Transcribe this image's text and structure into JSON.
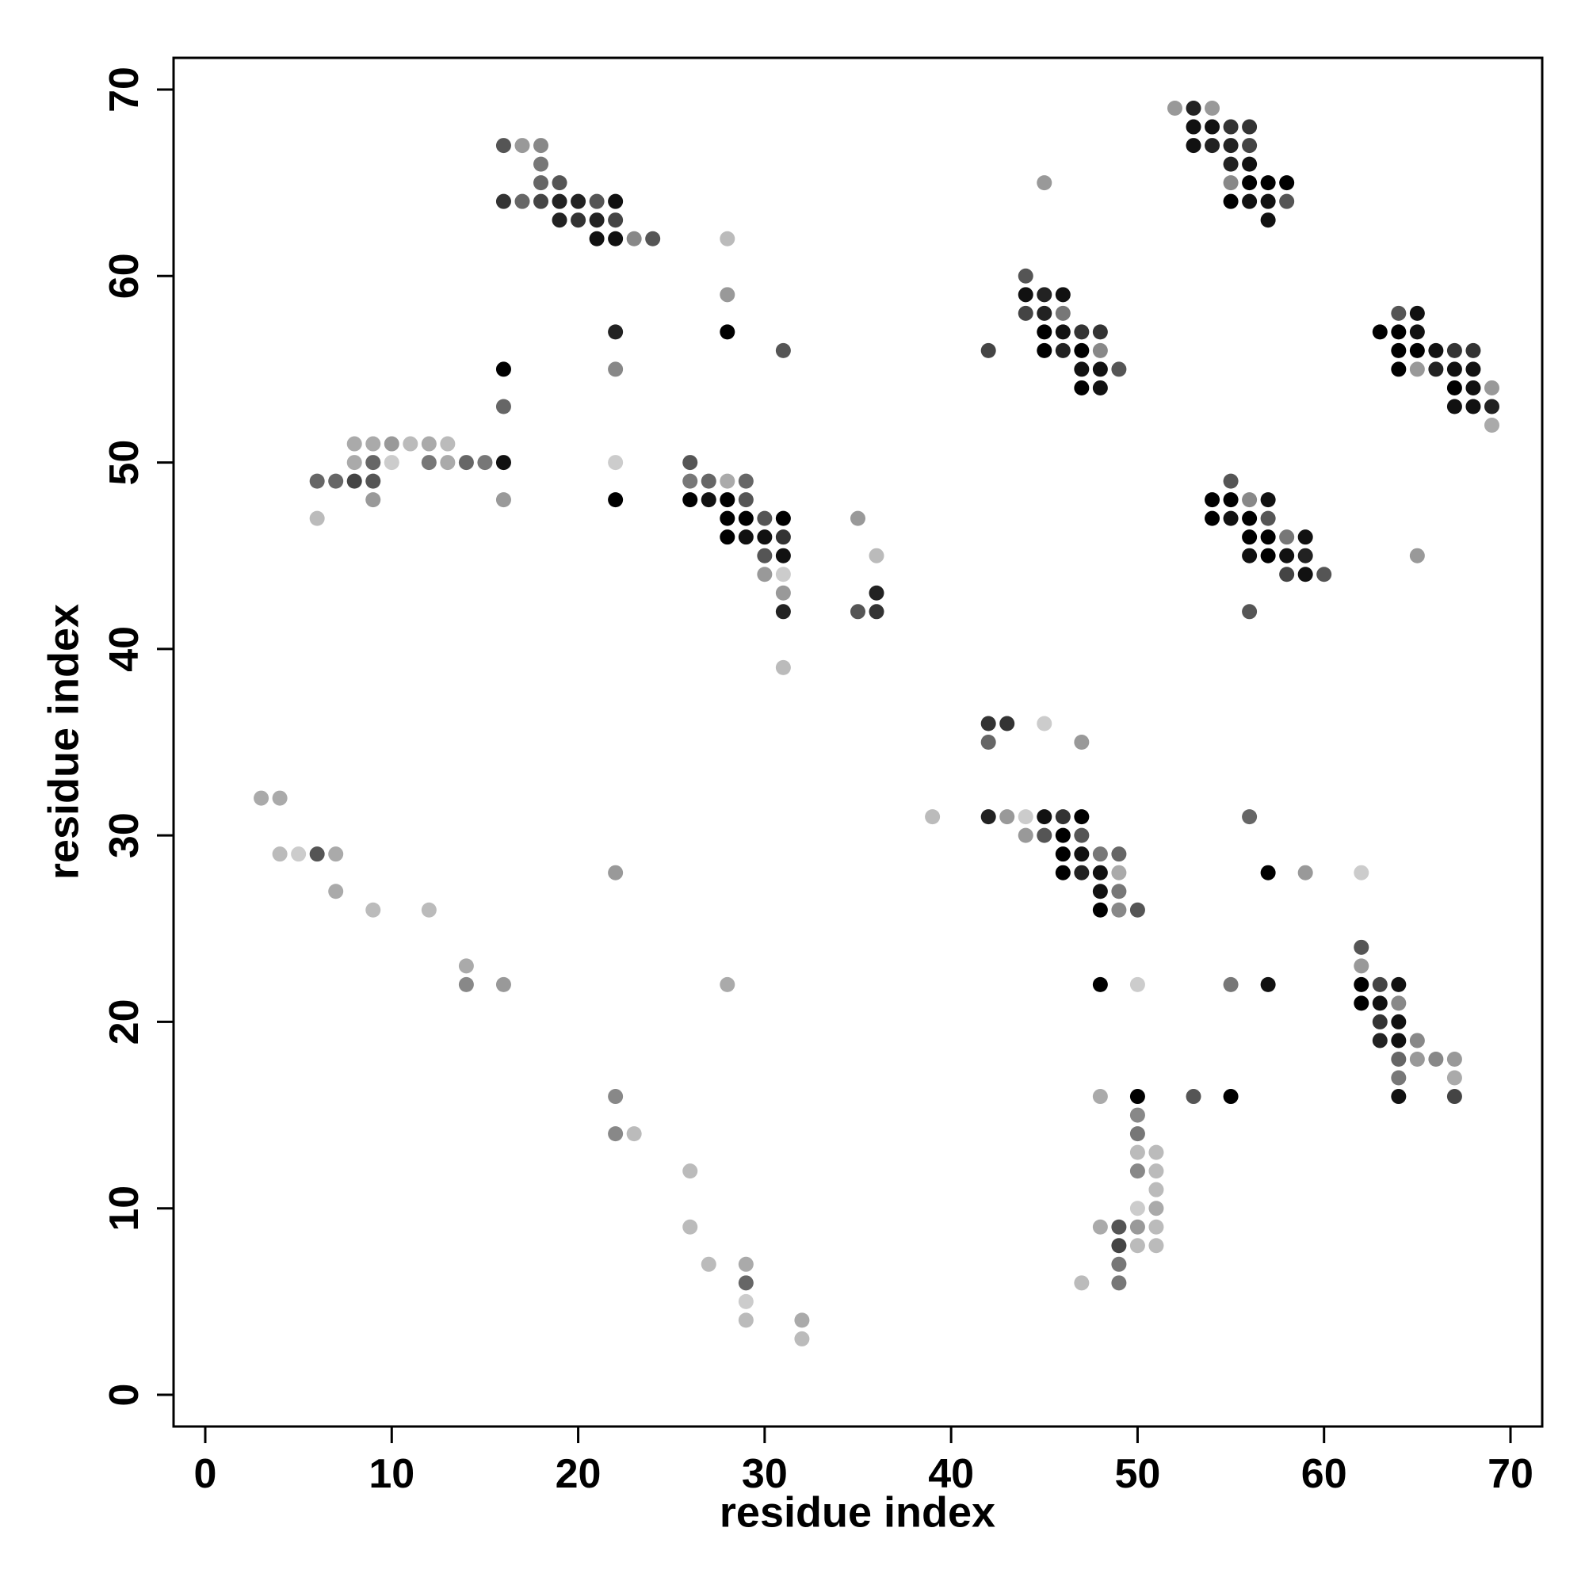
{
  "chart_data": {
    "type": "scatter",
    "xlabel": "residue index",
    "ylabel": "residue index",
    "xlim": [
      -1.7,
      71.7
    ],
    "ylim": [
      -1.7,
      71.7
    ],
    "xticks": [
      0,
      10,
      20,
      30,
      40,
      50,
      60,
      70
    ],
    "yticks": [
      0,
      10,
      20,
      30,
      40,
      50,
      60,
      70
    ],
    "x": [
      52,
      53,
      54,
      53,
      54,
      55,
      56,
      16,
      17,
      18,
      53,
      54,
      55,
      56,
      18,
      55,
      56,
      18,
      19,
      45,
      55,
      56,
      57,
      58,
      16,
      17,
      18,
      19,
      20,
      21,
      22,
      55,
      56,
      57,
      58,
      19,
      20,
      21,
      22,
      57,
      21,
      22,
      23,
      24,
      28,
      44,
      28,
      44,
      45,
      46,
      44,
      45,
      46,
      64,
      65,
      22,
      28,
      45,
      46,
      47,
      48,
      63,
      64,
      65,
      31,
      42,
      45,
      46,
      47,
      48,
      64,
      65,
      66,
      67,
      68,
      16,
      22,
      47,
      48,
      49,
      64,
      65,
      66,
      67,
      68,
      47,
      48,
      67,
      68,
      69,
      16,
      67,
      68,
      69,
      69,
      8,
      9,
      10,
      11,
      12,
      13,
      8,
      9,
      10,
      12,
      13,
      14,
      15,
      16,
      22,
      26,
      6,
      7,
      8,
      9,
      26,
      27,
      28,
      29,
      55,
      9,
      16,
      22,
      26,
      27,
      28,
      29,
      54,
      55,
      56,
      57,
      6,
      28,
      29,
      30,
      31,
      35,
      54,
      55,
      56,
      57,
      28,
      29,
      30,
      31,
      56,
      57,
      58,
      59,
      30,
      31,
      36,
      56,
      57,
      58,
      59,
      65,
      30,
      31,
      58,
      59,
      60,
      31,
      36,
      31,
      35,
      36,
      56,
      31,
      42,
      43,
      45,
      42,
      47,
      3,
      4,
      39,
      42,
      43,
      44,
      45,
      46,
      47,
      56,
      44,
      45,
      46,
      47,
      4,
      5,
      6,
      7,
      46,
      47,
      48,
      49,
      22,
      46,
      47,
      48,
      49,
      57,
      59,
      62,
      7,
      48,
      49,
      9,
      12,
      48,
      49,
      50,
      62,
      14,
      62,
      14,
      16,
      28,
      48,
      50,
      55,
      57,
      62,
      63,
      64,
      62,
      63,
      64,
      63,
      64,
      63,
      64,
      65,
      64,
      65,
      66,
      67,
      64,
      67,
      22,
      48,
      50,
      53,
      55,
      64,
      67,
      50,
      22,
      23,
      50,
      50,
      51,
      26,
      50,
      51,
      51,
      50,
      51,
      26,
      48,
      49,
      50,
      51,
      49,
      50,
      51,
      27,
      29,
      49,
      29,
      47,
      49,
      29,
      29,
      32,
      32
    ],
    "y": [
      69,
      69,
      69,
      68,
      68,
      68,
      68,
      67,
      67,
      67,
      67,
      67,
      67,
      67,
      66,
      66,
      66,
      65,
      65,
      65,
      65,
      65,
      65,
      65,
      64,
      64,
      64,
      64,
      64,
      64,
      64,
      64,
      64,
      64,
      64,
      63,
      63,
      63,
      63,
      63,
      62,
      62,
      62,
      62,
      62,
      60,
      59,
      59,
      59,
      59,
      58,
      58,
      58,
      58,
      58,
      57,
      57,
      57,
      57,
      57,
      57,
      57,
      57,
      57,
      56,
      56,
      56,
      56,
      56,
      56,
      56,
      56,
      56,
      56,
      56,
      55,
      55,
      55,
      55,
      55,
      55,
      55,
      55,
      55,
      55,
      54,
      54,
      54,
      54,
      54,
      53,
      53,
      53,
      53,
      52,
      51,
      51,
      51,
      51,
      51,
      51,
      50,
      50,
      50,
      50,
      50,
      50,
      50,
      50,
      50,
      50,
      49,
      49,
      49,
      49,
      49,
      49,
      49,
      49,
      49,
      48,
      48,
      48,
      48,
      48,
      48,
      48,
      48,
      48,
      48,
      48,
      47,
      47,
      47,
      47,
      47,
      47,
      47,
      47,
      47,
      47,
      46,
      46,
      46,
      46,
      46,
      46,
      46,
      46,
      45,
      45,
      45,
      45,
      45,
      45,
      45,
      45,
      44,
      44,
      44,
      44,
      44,
      43,
      43,
      42,
      42,
      42,
      42,
      39,
      36,
      36,
      36,
      35,
      35,
      32,
      32,
      31,
      31,
      31,
      31,
      31,
      31,
      31,
      31,
      30,
      30,
      30,
      30,
      29,
      29,
      29,
      29,
      29,
      29,
      29,
      29,
      28,
      28,
      28,
      28,
      28,
      28,
      28,
      28,
      27,
      27,
      27,
      26,
      26,
      26,
      26,
      26,
      24,
      23,
      23,
      22,
      22,
      22,
      22,
      22,
      22,
      22,
      22,
      22,
      22,
      21,
      21,
      21,
      20,
      20,
      19,
      19,
      19,
      18,
      18,
      18,
      18,
      17,
      17,
      16,
      16,
      16,
      16,
      16,
      16,
      16,
      15,
      14,
      14,
      14,
      13,
      13,
      12,
      12,
      12,
      11,
      10,
      10,
      9,
      9,
      9,
      9,
      9,
      8,
      8,
      8,
      7,
      7,
      7,
      6,
      6,
      6,
      5,
      4,
      4,
      3
    ],
    "colors": [
      "#999999",
      "#222222",
      "#999999",
      "#111111",
      "#111111",
      "#333333",
      "#333333",
      "#555555",
      "#999999",
      "#888888",
      "#111111",
      "#222222",
      "#222222",
      "#444444",
      "#777777",
      "#222222",
      "#111111",
      "#666666",
      "#555555",
      "#999999",
      "#888888",
      "#000000",
      "#000000",
      "#000000",
      "#333333",
      "#666666",
      "#444444",
      "#222222",
      "#222222",
      "#555555",
      "#111111",
      "#000000",
      "#111111",
      "#111111",
      "#555555",
      "#222222",
      "#333333",
      "#222222",
      "#444444",
      "#111111",
      "#111111",
      "#111111",
      "#888888",
      "#555555",
      "#bbbbbb",
      "#555555",
      "#999999",
      "#111111",
      "#222222",
      "#111111",
      "#444444",
      "#222222",
      "#777777",
      "#555555",
      "#111111",
      "#222222",
      "#000000",
      "#000000",
      "#111111",
      "#333333",
      "#333333",
      "#000000",
      "#000000",
      "#111111",
      "#555555",
      "#444444",
      "#000000",
      "#222222",
      "#000000",
      "#888888",
      "#000000",
      "#000000",
      "#111111",
      "#333333",
      "#333333",
      "#000000",
      "#888888",
      "#111111",
      "#111111",
      "#555555",
      "#000000",
      "#999999",
      "#222222",
      "#111111",
      "#111111",
      "#000000",
      "#111111",
      "#000000",
      "#111111",
      "#999999",
      "#666666",
      "#111111",
      "#111111",
      "#222222",
      "#aaaaaa",
      "#aaaaaa",
      "#aaaaaa",
      "#999999",
      "#bbbbbb",
      "#aaaaaa",
      "#bbbbbb",
      "#aaaaaa",
      "#666666",
      "#cccccc",
      "#777777",
      "#aaaaaa",
      "#666666",
      "#777777",
      "#111111",
      "#cccccc",
      "#555555",
      "#666666",
      "#666666",
      "#444444",
      "#555555",
      "#777777",
      "#666666",
      "#aaaaaa",
      "#666666",
      "#555555",
      "#999999",
      "#999999",
      "#000000",
      "#000000",
      "#111111",
      "#000000",
      "#555555",
      "#000000",
      "#000000",
      "#888888",
      "#111111",
      "#bbbbbb",
      "#000000",
      "#000000",
      "#555555",
      "#000000",
      "#999999",
      "#000000",
      "#111111",
      "#000000",
      "#555555",
      "#000000",
      "#111111",
      "#111111",
      "#333333",
      "#000000",
      "#000000",
      "#777777",
      "#111111",
      "#555555",
      "#111111",
      "#bbbbbb",
      "#111111",
      "#000000",
      "#111111",
      "#222222",
      "#999999",
      "#999999",
      "#cccccc",
      "#444444",
      "#111111",
      "#555555",
      "#999999",
      "#222222",
      "#222222",
      "#555555",
      "#333333",
      "#555555",
      "#bbbbbb",
      "#333333",
      "#333333",
      "#cccccc",
      "#666666",
      "#999999",
      "#aaaaaa",
      "#aaaaaa",
      "#bbbbbb",
      "#222222",
      "#999999",
      "#cccccc",
      "#111111",
      "#333333",
      "#000000",
      "#666666",
      "#999999",
      "#555555",
      "#000000",
      "#555555",
      "#bbbbbb",
      "#cccccc",
      "#555555",
      "#aaaaaa",
      "#000000",
      "#111111",
      "#777777",
      "#666666",
      "#999999",
      "#000000",
      "#222222",
      "#111111",
      "#aaaaaa",
      "#000000",
      "#999999",
      "#cccccc",
      "#aaaaaa",
      "#111111",
      "#777777",
      "#bbbbbb",
      "#bbbbbb",
      "#000000",
      "#888888",
      "#555555",
      "#555555",
      "#aaaaaa",
      "#999999",
      "#888888",
      "#999999",
      "#aaaaaa",
      "#000000",
      "#cccccc",
      "#777777",
      "#111111",
      "#000000",
      "#444444",
      "#111111",
      "#000000",
      "#111111",
      "#888888",
      "#333333",
      "#111111",
      "#222222",
      "#111111",
      "#888888",
      "#666666",
      "#999999",
      "#888888",
      "#999999",
      "#777777",
      "#aaaaaa",
      "#888888",
      "#aaaaaa",
      "#000000",
      "#555555",
      "#000000",
      "#111111",
      "#444444",
      "#888888",
      "#888888",
      "#bbbbbb",
      "#777777",
      "#bbbbbb",
      "#bbbbbb",
      "#bbbbbb",
      "#888888",
      "#bbbbbb",
      "#bbbbbb",
      "#cccccc",
      "#aaaaaa",
      "#bbbbbb",
      "#aaaaaa",
      "#555555",
      "#999999",
      "#bbbbbb",
      "#444444",
      "#bbbbbb",
      "#bbbbbb",
      "#bbbbbb",
      "#aaaaaa",
      "#777777",
      "#666666",
      "#bbbbbb",
      "#777777",
      "#cccccc",
      "#bbbbbb",
      "#aaaaaa",
      "#bbbbbb"
    ]
  }
}
